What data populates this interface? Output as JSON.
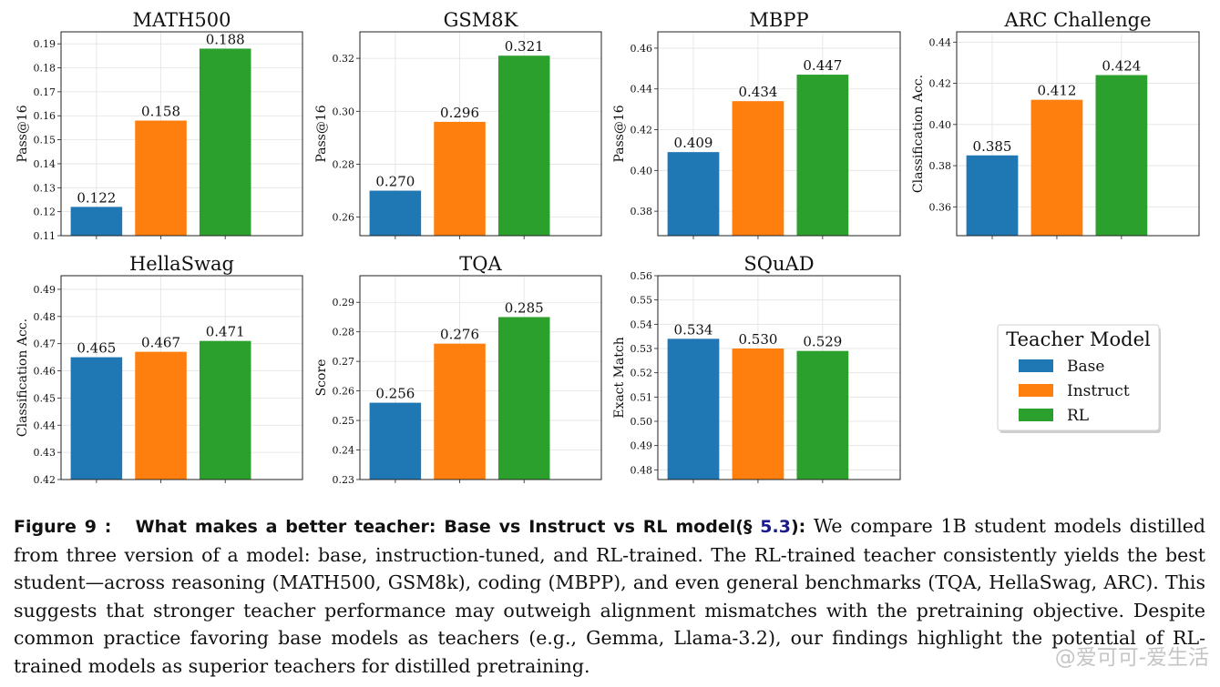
{
  "chart_data": [
    {
      "type": "bar",
      "title": "MATH500",
      "ylabel": "Pass@16",
      "categories": [
        "Base",
        "Instruct",
        "RL"
      ],
      "values": [
        0.122,
        0.158,
        0.188
      ],
      "labels": [
        "0.122",
        "0.158",
        "0.188"
      ],
      "ylim": [
        0.11,
        0.195
      ],
      "yticks": [
        "0.11",
        "0.12",
        "0.13",
        "0.14",
        "0.15",
        "0.16",
        "0.17",
        "0.18",
        "0.19"
      ],
      "grid": true
    },
    {
      "type": "bar",
      "title": "GSM8K",
      "ylabel": "Pass@16",
      "categories": [
        "Base",
        "Instruct",
        "RL"
      ],
      "values": [
        0.27,
        0.296,
        0.321
      ],
      "labels": [
        "0.270",
        "0.296",
        "0.321"
      ],
      "ylim": [
        0.253,
        0.33
      ],
      "yticks": [
        "0.26",
        "0.28",
        "0.30",
        "0.32"
      ],
      "grid": true
    },
    {
      "type": "bar",
      "title": "MBPP",
      "ylabel": "Pass@16",
      "categories": [
        "Base",
        "Instruct",
        "RL"
      ],
      "values": [
        0.409,
        0.434,
        0.447
      ],
      "labels": [
        "0.409",
        "0.434",
        "0.447"
      ],
      "ylim": [
        0.368,
        0.468
      ],
      "yticks": [
        "0.38",
        "0.40",
        "0.42",
        "0.44",
        "0.46"
      ],
      "grid": true
    },
    {
      "type": "bar",
      "title": "ARC Challenge",
      "ylabel": "Classification Acc.",
      "categories": [
        "Base",
        "Instruct",
        "RL"
      ],
      "values": [
        0.385,
        0.412,
        0.424
      ],
      "labels": [
        "0.385",
        "0.412",
        "0.424"
      ],
      "ylim": [
        0.346,
        0.445
      ],
      "yticks": [
        "0.36",
        "0.38",
        "0.40",
        "0.42",
        "0.44"
      ],
      "grid": true
    },
    {
      "type": "bar",
      "title": "HellaSwag",
      "ylabel": "Classification Acc.",
      "categories": [
        "Base",
        "Instruct",
        "RL"
      ],
      "values": [
        0.465,
        0.467,
        0.471
      ],
      "labels": [
        "0.465",
        "0.467",
        "0.471"
      ],
      "ylim": [
        0.42,
        0.495
      ],
      "yticks": [
        "0.42",
        "0.43",
        "0.44",
        "0.45",
        "0.46",
        "0.47",
        "0.48",
        "0.49"
      ],
      "grid": true
    },
    {
      "type": "bar",
      "title": "TQA",
      "ylabel": "Score",
      "categories": [
        "Base",
        "Instruct",
        "RL"
      ],
      "values": [
        0.256,
        0.276,
        0.285
      ],
      "labels": [
        "0.256",
        "0.276",
        "0.285"
      ],
      "ylim": [
        0.23,
        0.299
      ],
      "yticks": [
        "0.23",
        "0.24",
        "0.25",
        "0.26",
        "0.27",
        "0.28",
        "0.29"
      ],
      "grid": true
    },
    {
      "type": "bar",
      "title": "SQuAD",
      "ylabel": "Exact Match",
      "categories": [
        "Base",
        "Instruct",
        "RL"
      ],
      "values": [
        0.534,
        0.53,
        0.529
      ],
      "labels": [
        "0.534",
        "0.530",
        "0.529"
      ],
      "ylim": [
        0.476,
        0.56
      ],
      "yticks": [
        "0.48",
        "0.49",
        "0.50",
        "0.51",
        "0.52",
        "0.53",
        "0.54",
        "0.55",
        "0.56"
      ],
      "grid": true
    }
  ],
  "legend": {
    "title": "Teacher Model",
    "placement": "bottom-right",
    "items": [
      {
        "label": "Base",
        "color": "#1f77b4"
      },
      {
        "label": "Instruct",
        "color": "#ff7f0e"
      },
      {
        "label": "RL",
        "color": "#2ca02c"
      }
    ]
  },
  "colors": [
    "#1f77b4",
    "#ff7f0e",
    "#2ca02c"
  ],
  "caption": {
    "label": "Figure 9 :",
    "heading": "What makes a better teacher: Base vs Instruct vs RL model(§ ",
    "ref": "5.3",
    "heading_end": "):",
    "body": " We compare 1B student models distilled from three version of a model: base, instruction-tuned, and RL-trained. The RL-trained teacher consistently yields the best student—across reasoning (MATH500, GSM8k), coding (MBPP), and even general benchmarks (TQA, HellaSwag, ARC). This suggests that stronger teacher performance may outweigh alignment mismatches with the pretraining objective. Despite common practice favoring base models as teachers (e.g., Gemma, Llama-3.2), our findings highlight the potential of RL-trained models as superior teachers for distilled pretraining."
  },
  "watermark": "@爱可可-爱生活"
}
